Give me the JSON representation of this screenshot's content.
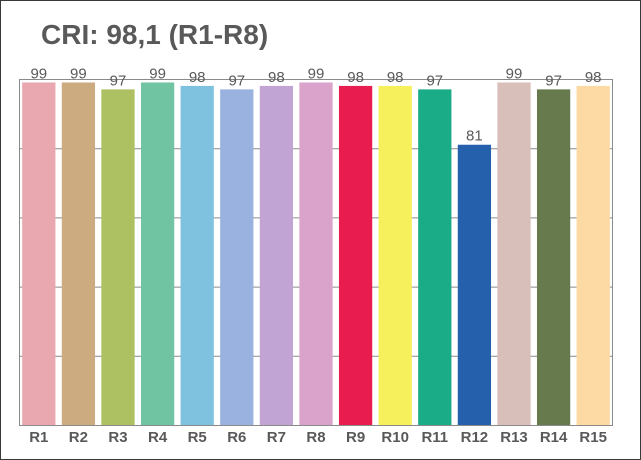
{
  "chart_data": {
    "type": "bar",
    "title": "CRI: 98,1 (R1-R8)",
    "categories": [
      "R1",
      "R2",
      "R3",
      "R4",
      "R5",
      "R6",
      "R7",
      "R8",
      "R9",
      "R10",
      "R11",
      "R12",
      "R13",
      "R14",
      "R15"
    ],
    "values": [
      99,
      99,
      97,
      99,
      98,
      97,
      98,
      99,
      98,
      98,
      97,
      81,
      99,
      97,
      98
    ],
    "colors": [
      "#e9a7b0",
      "#ccab80",
      "#adc163",
      "#70c4a2",
      "#7fc2e0",
      "#99b2e0",
      "#c1a4d4",
      "#d9a3cb",
      "#e91c50",
      "#f6f05c",
      "#1aab87",
      "#2560ad",
      "#d9bfb9",
      "#667a4d",
      "#fdd9a3"
    ],
    "ylim": [
      0,
      100
    ],
    "grid": true,
    "xlabel": "",
    "ylabel": ""
  }
}
